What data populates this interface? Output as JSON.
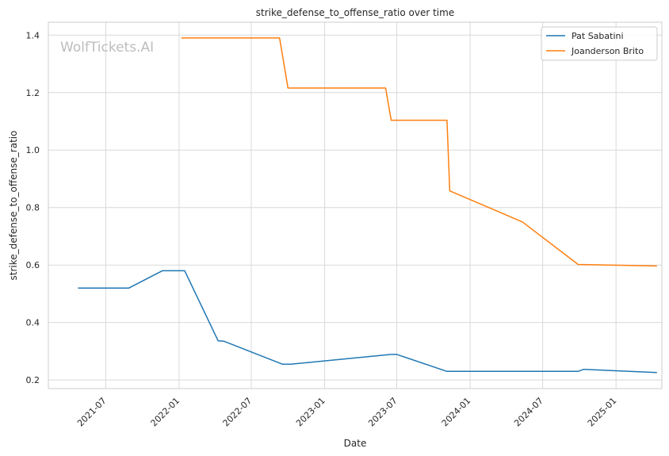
{
  "chart_data": {
    "type": "line",
    "title": "strike_defense_to_offense_ratio over time",
    "xlabel": "Date",
    "ylabel": "strike_defense_to_offense_ratio",
    "watermark": "WolfTickets.AI",
    "xlim": [
      "2021-02-07",
      "2025-04-26"
    ],
    "ylim": [
      0.17,
      1.445
    ],
    "x_ticks": [
      "2021-07",
      "2022-01",
      "2022-07",
      "2023-01",
      "2023-07",
      "2024-01",
      "2024-07",
      "2025-01"
    ],
    "y_ticks": [
      0.2,
      0.4,
      0.6,
      0.8,
      1.0,
      1.2,
      1.4
    ],
    "grid": true,
    "legend_position": "top-right",
    "series": [
      {
        "name": "Pat Sabatini",
        "color": "#1f77b4",
        "x": [
          "2021-04-24",
          "2021-08-28",
          "2021-11-20",
          "2022-01-15",
          "2022-04-09",
          "2022-04-23",
          "2022-09-17",
          "2022-10-08",
          "2023-06-17",
          "2023-07-01",
          "2023-11-04",
          "2024-05-11",
          "2024-09-28",
          "2024-10-12",
          "2025-04-12"
        ],
        "y": [
          0.52,
          0.52,
          0.58,
          0.58,
          0.336,
          0.335,
          0.255,
          0.255,
          0.289,
          0.289,
          0.23,
          0.23,
          0.23,
          0.237,
          0.226
        ]
      },
      {
        "name": "Joanderson Brito",
        "color": "#ff7f0e",
        "x": [
          "2022-01-08",
          "2022-09-10",
          "2022-10-01",
          "2023-06-03",
          "2023-06-17",
          "2023-11-04",
          "2023-11-11",
          "2024-05-11",
          "2024-09-28",
          "2025-04-12"
        ],
        "y": [
          1.39,
          1.39,
          1.216,
          1.216,
          1.104,
          1.104,
          0.858,
          0.75,
          0.602,
          0.597
        ]
      }
    ]
  }
}
